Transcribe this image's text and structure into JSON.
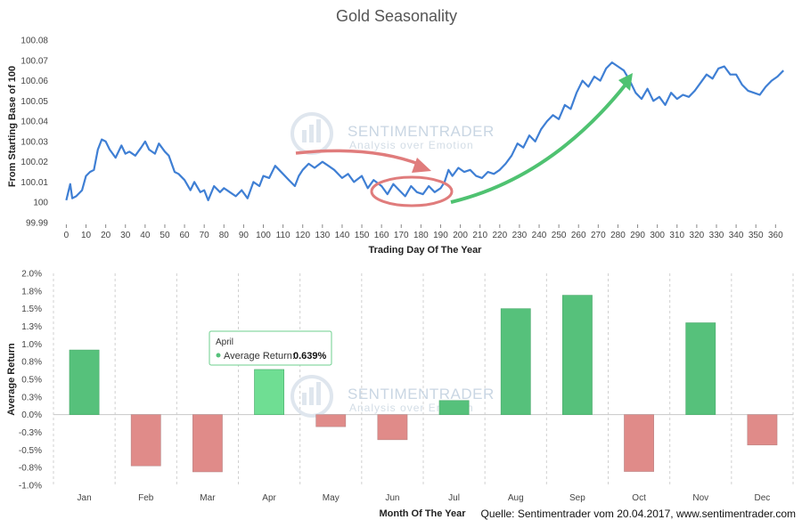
{
  "source": "Quelle: Sentimentrader vom 20.04.2017, www.sentimentrader.com",
  "watermark": {
    "name": "SENTIMENTRADER",
    "tagline": "Analysis over Emotion"
  },
  "colors": {
    "line": "#3f7fd4",
    "positive": "#56c17b",
    "negative": "#e08b89",
    "highlight": "#6fde93",
    "arrow_red": "#e07c7c",
    "arrow_green": "#4fc271",
    "grid": "#d0d0d0"
  },
  "chart_data": [
    {
      "type": "line",
      "title": "Gold Seasonality",
      "xlabel": "Trading Day Of The Year",
      "ylabel": "From Starting Base of 100",
      "xlim": [
        -2,
        368
      ],
      "ylim": [
        99.99,
        100.08
      ],
      "xticks": [
        0,
        10,
        20,
        30,
        40,
        50,
        60,
        70,
        80,
        90,
        100,
        110,
        120,
        130,
        140,
        150,
        160,
        170,
        180,
        190,
        200,
        210,
        220,
        230,
        240,
        250,
        260,
        270,
        280,
        290,
        300,
        310,
        320,
        330,
        340,
        350,
        360
      ],
      "yticks": [
        99.99,
        100,
        100.01,
        100.02,
        100.03,
        100.04,
        100.05,
        100.06,
        100.07,
        100.08
      ],
      "ytick_labels": [
        "99.99",
        "100",
        "100.01",
        "100.02",
        "100.03",
        "100.04",
        "100.05",
        "100.06",
        "100.07",
        "100.08"
      ],
      "series": [
        {
          "name": "Gold Seasonality",
          "x": [
            0,
            2,
            3,
            5,
            8,
            10,
            12,
            14,
            16,
            18,
            20,
            22,
            25,
            28,
            30,
            32,
            35,
            38,
            40,
            42,
            45,
            47,
            50,
            52,
            55,
            57,
            60,
            63,
            65,
            68,
            70,
            72,
            75,
            78,
            80,
            83,
            86,
            89,
            92,
            95,
            98,
            100,
            103,
            106,
            110,
            113,
            116,
            118,
            120,
            123,
            126,
            130,
            133,
            136,
            140,
            143,
            146,
            150,
            153,
            156,
            160,
            163,
            166,
            169,
            172,
            175,
            178,
            181,
            184,
            187,
            190,
            192,
            194,
            196,
            199,
            202,
            205,
            208,
            211,
            214,
            217,
            220,
            223,
            226,
            229,
            232,
            235,
            238,
            241,
            244,
            247,
            250,
            253,
            256,
            259,
            262,
            265,
            268,
            271,
            274,
            277,
            280,
            283,
            286,
            289,
            292,
            295,
            298,
            301,
            304,
            307,
            310,
            313,
            316,
            319,
            322,
            325,
            328,
            331,
            334,
            337,
            340,
            343,
            346,
            349,
            352,
            355,
            358,
            361,
            364
          ],
          "y": [
            100.001,
            100.009,
            100.002,
            100.003,
            100.006,
            100.013,
            100.015,
            100.016,
            100.026,
            100.031,
            100.03,
            100.026,
            100.022,
            100.028,
            100.024,
            100.025,
            100.023,
            100.027,
            100.03,
            100.026,
            100.024,
            100.029,
            100.025,
            100.023,
            100.015,
            100.014,
            100.011,
            100.006,
            100.01,
            100.005,
            100.006,
            100.001,
            100.008,
            100.005,
            100.007,
            100.005,
            100.003,
            100.006,
            100.002,
            100.01,
            100.008,
            100.013,
            100.012,
            100.018,
            100.014,
            100.011,
            100.008,
            100.013,
            100.016,
            100.019,
            100.017,
            100.02,
            100.018,
            100.016,
            100.012,
            100.014,
            100.01,
            100.013,
            100.007,
            100.011,
            100.008,
            100.004,
            100.009,
            100.006,
            100.003,
            100.008,
            100.005,
            100.004,
            100.008,
            100.005,
            100.007,
            100.01,
            100.016,
            100.013,
            100.017,
            100.015,
            100.016,
            100.013,
            100.012,
            100.015,
            100.014,
            100.016,
            100.019,
            100.023,
            100.029,
            100.027,
            100.033,
            100.03,
            100.036,
            100.04,
            100.043,
            100.041,
            100.048,
            100.046,
            100.054,
            100.06,
            100.057,
            100.062,
            100.06,
            100.066,
            100.069,
            100.067,
            100.065,
            100.06,
            100.054,
            100.051,
            100.056,
            100.05,
            100.052,
            100.048,
            100.054,
            100.051,
            100.053,
            100.052,
            100.055,
            100.059,
            100.063,
            100.061,
            100.066,
            100.067,
            100.063,
            100.063,
            100.058,
            100.055,
            100.054,
            100.053,
            100.057,
            100.06,
            100.062,
            100.065
          ]
        }
      ],
      "annotations": [
        "red curved arrow from ~day 120 to ~day 188",
        "red ellipse around days 165-193",
        "green curved arrow from ~day 195 to ~day 288"
      ]
    },
    {
      "type": "bar",
      "xlabel": "Month Of The Year",
      "ylabel": "Average Return",
      "ylim": [
        -1.0,
        2.0
      ],
      "yticks": [
        -1.0,
        -0.75,
        -0.5,
        -0.25,
        0,
        0.25,
        0.5,
        0.75,
        1.0,
        1.25,
        1.5,
        1.75,
        2.0
      ],
      "ytick_labels": [
        "-1.0%",
        "-0.8%",
        "-0.5%",
        "-0.3%",
        "0.0%",
        "0.3%",
        "0.5%",
        "0.8%",
        "1.0%",
        "1.3%",
        "1.5%",
        "1.8%",
        "2.0%"
      ],
      "categories": [
        "Jan",
        "Feb",
        "Mar",
        "Apr",
        "May",
        "Jun",
        "Jul",
        "Aug",
        "Sep",
        "Oct",
        "Nov",
        "Dec"
      ],
      "values": [
        0.915,
        -0.725,
        -0.81,
        0.639,
        -0.17,
        -0.355,
        0.2,
        1.5,
        1.69,
        -0.805,
        1.3,
        -0.43
      ],
      "tooltip": {
        "title": "April",
        "label": "Average Return:",
        "value": "0.639%"
      }
    }
  ]
}
